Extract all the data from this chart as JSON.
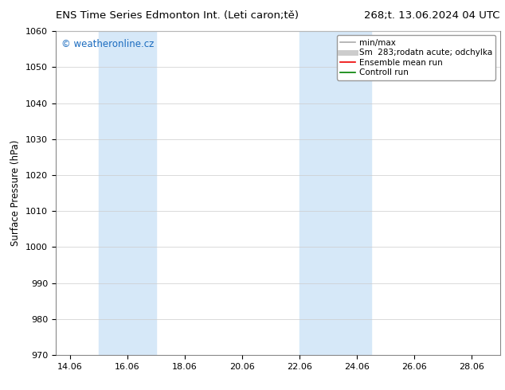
{
  "title_left": "ENS Time Series Edmonton Int. (Leti caron;tě)",
  "title_right": "268;t. 13.06.2024 04 UTC",
  "ylabel": "Surface Pressure (hPa)",
  "ylim": [
    970,
    1060
  ],
  "yticks": [
    970,
    980,
    990,
    1000,
    1010,
    1020,
    1030,
    1040,
    1050,
    1060
  ],
  "xlim_start": 13.5,
  "xlim_end": 29.0,
  "xtick_labels": [
    "14.06",
    "16.06",
    "18.06",
    "20.06",
    "22.06",
    "24.06",
    "26.06",
    "28.06"
  ],
  "xtick_positions": [
    14.0,
    16.0,
    18.0,
    20.0,
    22.0,
    24.0,
    26.0,
    28.0
  ],
  "shaded_regions": [
    {
      "xmin": 15.0,
      "xmax": 17.0,
      "color": "#d6e8f8"
    },
    {
      "xmin": 22.0,
      "xmax": 24.5,
      "color": "#d6e8f8"
    }
  ],
  "watermark_text": "© weatheronline.cz",
  "watermark_color": "#1a6bbf",
  "legend_entries": [
    {
      "label": "min/max",
      "color": "#aaaaaa",
      "lw": 1.2,
      "style": "solid"
    },
    {
      "label": "Sm  283;rodatn acute; odchylka",
      "color": "#cccccc",
      "lw": 5,
      "style": "solid"
    },
    {
      "label": "Ensemble mean run",
      "color": "#ee0000",
      "lw": 1.2,
      "style": "solid"
    },
    {
      "label": "Controll run",
      "color": "#008000",
      "lw": 1.2,
      "style": "solid"
    }
  ],
  "bg_color": "#ffffff",
  "axes_bg_color": "#ffffff",
  "grid_color": "#cccccc",
  "title_fontsize": 9.5,
  "axis_label_fontsize": 8.5,
  "tick_fontsize": 8,
  "legend_fontsize": 7.5
}
